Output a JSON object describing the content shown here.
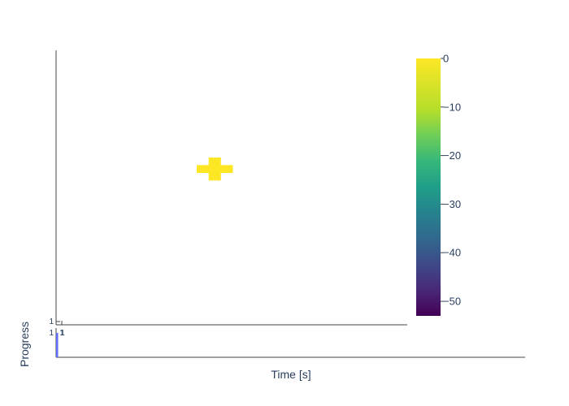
{
  "chart_data": [
    {
      "type": "heatmap",
      "title": "",
      "colorscale": "Viridis",
      "zrange": [
        -53,
        0
      ],
      "colorbar": {
        "ticks": [
          0,
          -10,
          -20,
          -30,
          -40,
          -50
        ],
        "tick_labels": [
          "0",
          "−10",
          "−20",
          "−30",
          "−40",
          "−50"
        ]
      },
      "y_tick_label": "1",
      "x_tick_label": "1",
      "cells": [
        {
          "row": 0,
          "col": 1,
          "z": 0
        },
        {
          "row": 1,
          "col": 0,
          "z": 0
        },
        {
          "row": 1,
          "col": 1,
          "z": 0
        },
        {
          "row": 1,
          "col": 2,
          "z": 0
        },
        {
          "row": 2,
          "col": 1,
          "z": 0
        }
      ],
      "color_high": "#fde725",
      "color_low": "#440154"
    },
    {
      "type": "bar",
      "ylabel": "Progress",
      "xlabel": "Time [s]",
      "y_tick_label": "1",
      "x_tick_label": "1",
      "x": [
        1
      ],
      "values": [
        1
      ],
      "bar_color": "#636efa"
    }
  ]
}
